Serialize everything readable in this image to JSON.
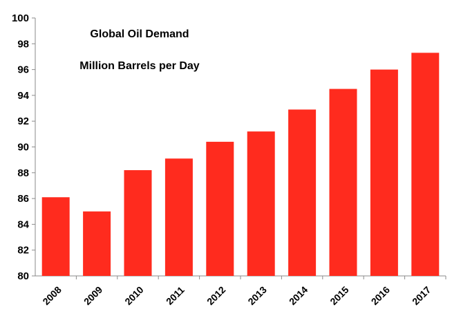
{
  "chart_data": {
    "type": "bar",
    "title": "Global Oil Demand",
    "subtitle": "Million Barrels per Day",
    "categories": [
      "2008",
      "2009",
      "2010",
      "2011",
      "2012",
      "2013",
      "2014",
      "2015",
      "2016",
      "2017"
    ],
    "values": [
      86.1,
      85.0,
      88.2,
      89.1,
      90.4,
      91.2,
      92.9,
      94.5,
      96.0,
      97.3
    ],
    "ylim": [
      80,
      100
    ],
    "yticks": [
      "80",
      "82",
      "84",
      "86",
      "88",
      "90",
      "92",
      "94",
      "96",
      "98",
      "100"
    ],
    "xlabel": "",
    "ylabel": "",
    "grid": false,
    "bar_color": "#ff2b1e",
    "axis_color": "#8a8a8a"
  }
}
